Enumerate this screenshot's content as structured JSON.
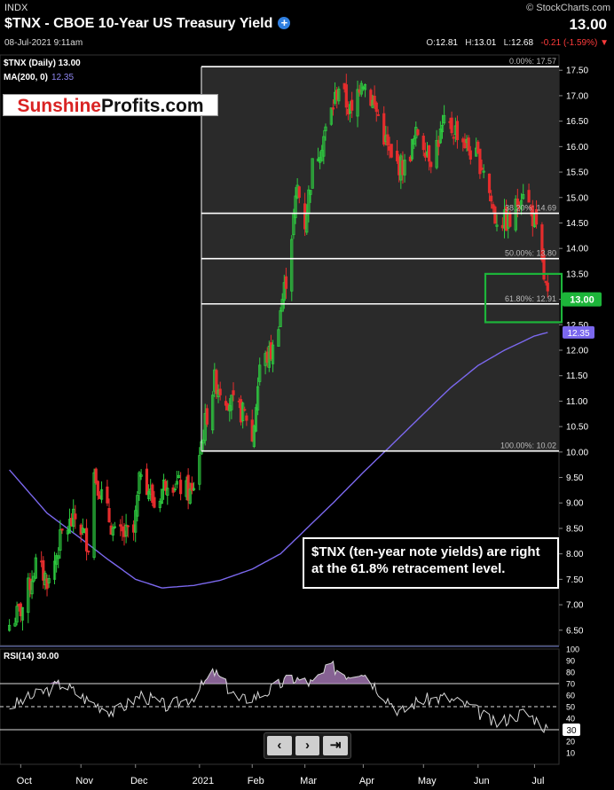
{
  "header": {
    "exchange": "INDX",
    "title": "$TNX - CBOE 10-Year US Treasury Yield",
    "timestamp": "08-Jul-2021 9:11am",
    "watermark": "© StockCharts.com",
    "last": "13.00",
    "open_label": "O:",
    "open": "12.81",
    "high_label": "H:",
    "high": "13.01",
    "low_label": "L:",
    "low": "12.68",
    "change": "-0.21 (-1.59%)",
    "change_arrow": "▼"
  },
  "brand": {
    "part1": "Sunshine",
    "part2": "Profits.com"
  },
  "annotation": "$TNX (ten-year note yields) are right at the 61.8% retracement level.",
  "nav": {
    "prev": "‹",
    "next": "›",
    "end": "⇥"
  },
  "colors": {
    "up": "#2ecc40",
    "down": "#e52d2d",
    "ma": "#7b68ee",
    "highlight": "#1db53a",
    "background": "#000000"
  },
  "chart_data": [
    {
      "type": "candlestick",
      "legend": [
        "$TNX (Daily) 13.00",
        "MA(200, 0)"
      ],
      "ma_value_label": "12.35",
      "ma_tag": "12.35",
      "last_tag": "13.00",
      "x_ticks": [
        "Oct",
        "Nov",
        "Dec",
        "2021",
        "Feb",
        "Mar",
        "Apr",
        "May",
        "Jun",
        "Jul"
      ],
      "y_ticks": [
        "6.50",
        "7.00",
        "7.50",
        "8.00",
        "8.50",
        "9.00",
        "9.50",
        "10.00",
        "10.50",
        "11.00",
        "11.50",
        "12.00",
        "12.50",
        "13.00",
        "13.50",
        "14.00",
        "14.50",
        "15.00",
        "15.50",
        "16.00",
        "16.50",
        "17.00",
        "17.50"
      ],
      "ylim": [
        6.2,
        17.8
      ],
      "fibonacci": [
        {
          "label": "0.00%: 17.57",
          "value": 17.57
        },
        {
          "label": "38.20%: 14.69",
          "value": 14.69
        },
        {
          "label": "50.00%: 13.80",
          "value": 13.8
        },
        {
          "label": "61.80%: 12.91",
          "value": 12.91
        },
        {
          "label": "100.00%: 10.02",
          "value": 10.02
        }
      ],
      "close_anchors": [
        [
          "2020-09-25",
          6.6
        ],
        [
          "2020-10-02",
          6.95
        ],
        [
          "2020-10-09",
          7.8
        ],
        [
          "2020-10-16",
          7.45
        ],
        [
          "2020-10-23",
          8.4
        ],
        [
          "2020-10-30",
          8.7
        ],
        [
          "2020-11-06",
          8.2
        ],
        [
          "2020-11-09",
          9.6
        ],
        [
          "2020-11-20",
          8.35
        ],
        [
          "2020-11-30",
          8.4
        ],
        [
          "2020-12-04",
          9.7
        ],
        [
          "2020-12-11",
          8.95
        ],
        [
          "2020-12-18",
          9.5
        ],
        [
          "2020-12-31",
          9.15
        ],
        [
          "2021-01-06",
          10.4
        ],
        [
          "2021-01-12",
          11.4
        ],
        [
          "2021-01-22",
          10.9
        ],
        [
          "2021-01-29",
          10.7
        ],
        [
          "2021-02-01",
          10.2
        ],
        [
          "2021-02-05",
          11.7
        ],
        [
          "2021-02-12",
          12.0
        ],
        [
          "2021-02-19",
          13.4
        ],
        [
          "2021-02-25",
          15.2
        ],
        [
          "2021-03-01",
          14.5
        ],
        [
          "2021-03-05",
          15.6
        ],
        [
          "2021-03-12",
          16.3
        ],
        [
          "2021-03-19",
          17.2
        ],
        [
          "2021-03-26",
          16.6
        ],
        [
          "2021-03-31",
          17.4
        ],
        [
          "2021-04-09",
          16.6
        ],
        [
          "2021-04-16",
          15.7
        ],
        [
          "2021-04-23",
          15.6
        ],
        [
          "2021-04-30",
          16.3
        ],
        [
          "2021-05-07",
          15.8
        ],
        [
          "2021-05-14",
          16.4
        ],
        [
          "2021-05-21",
          16.3
        ],
        [
          "2021-05-28",
          15.9
        ],
        [
          "2021-06-04",
          15.6
        ],
        [
          "2021-06-10",
          14.6
        ],
        [
          "2021-06-18",
          14.5
        ],
        [
          "2021-06-25",
          15.2
        ],
        [
          "2021-07-01",
          14.5
        ],
        [
          "2021-07-08",
          13.0
        ]
      ],
      "ma200_anchors": [
        [
          "2020-09-25",
          9.65
        ],
        [
          "2020-10-15",
          8.8
        ],
        [
          "2020-11-02",
          8.3
        ],
        [
          "2020-11-16",
          7.9
        ],
        [
          "2020-12-01",
          7.5
        ],
        [
          "2020-12-15",
          7.33
        ],
        [
          "2021-01-01",
          7.38
        ],
        [
          "2021-01-15",
          7.48
        ],
        [
          "2021-02-01",
          7.7
        ],
        [
          "2021-02-16",
          8.0
        ],
        [
          "2021-03-02",
          8.5
        ],
        [
          "2021-03-16",
          9.0
        ],
        [
          "2021-04-01",
          9.6
        ],
        [
          "2021-04-15",
          10.1
        ],
        [
          "2021-05-03",
          10.75
        ],
        [
          "2021-05-17",
          11.25
        ],
        [
          "2021-06-01",
          11.7
        ],
        [
          "2021-06-15",
          12.0
        ],
        [
          "2021-07-01",
          12.28
        ],
        [
          "2021-07-08",
          12.35
        ]
      ]
    },
    {
      "type": "line",
      "name": "RSI(14)",
      "legend": "RSI(14) 30.00",
      "y_ticks": [
        "10",
        "20",
        "30",
        "40",
        "50",
        "60",
        "70",
        "80",
        "90",
        "100"
      ],
      "ylim": [
        0,
        100
      ],
      "value_tag": "30",
      "reference_levels": [
        70,
        50,
        30
      ],
      "anchors": [
        [
          "2020-09-25",
          50
        ],
        [
          "2020-10-09",
          60
        ],
        [
          "2020-10-23",
          70
        ],
        [
          "2020-11-06",
          55
        ],
        [
          "2020-11-20",
          45
        ],
        [
          "2020-12-04",
          60
        ],
        [
          "2020-12-18",
          50
        ],
        [
          "2020-12-31",
          58
        ],
        [
          "2021-01-12",
          80
        ],
        [
          "2021-01-25",
          55
        ],
        [
          "2021-02-08",
          62
        ],
        [
          "2021-02-22",
          75
        ],
        [
          "2021-03-05",
          70
        ],
        [
          "2021-03-15",
          85
        ],
        [
          "2021-03-24",
          78
        ],
        [
          "2021-03-31",
          82
        ],
        [
          "2021-04-09",
          65
        ],
        [
          "2021-04-21",
          45
        ],
        [
          "2021-04-30",
          55
        ],
        [
          "2021-05-14",
          58
        ],
        [
          "2021-05-28",
          50
        ],
        [
          "2021-06-10",
          35
        ],
        [
          "2021-06-25",
          45
        ],
        [
          "2021-07-01",
          40
        ],
        [
          "2021-07-08",
          30
        ]
      ]
    }
  ]
}
